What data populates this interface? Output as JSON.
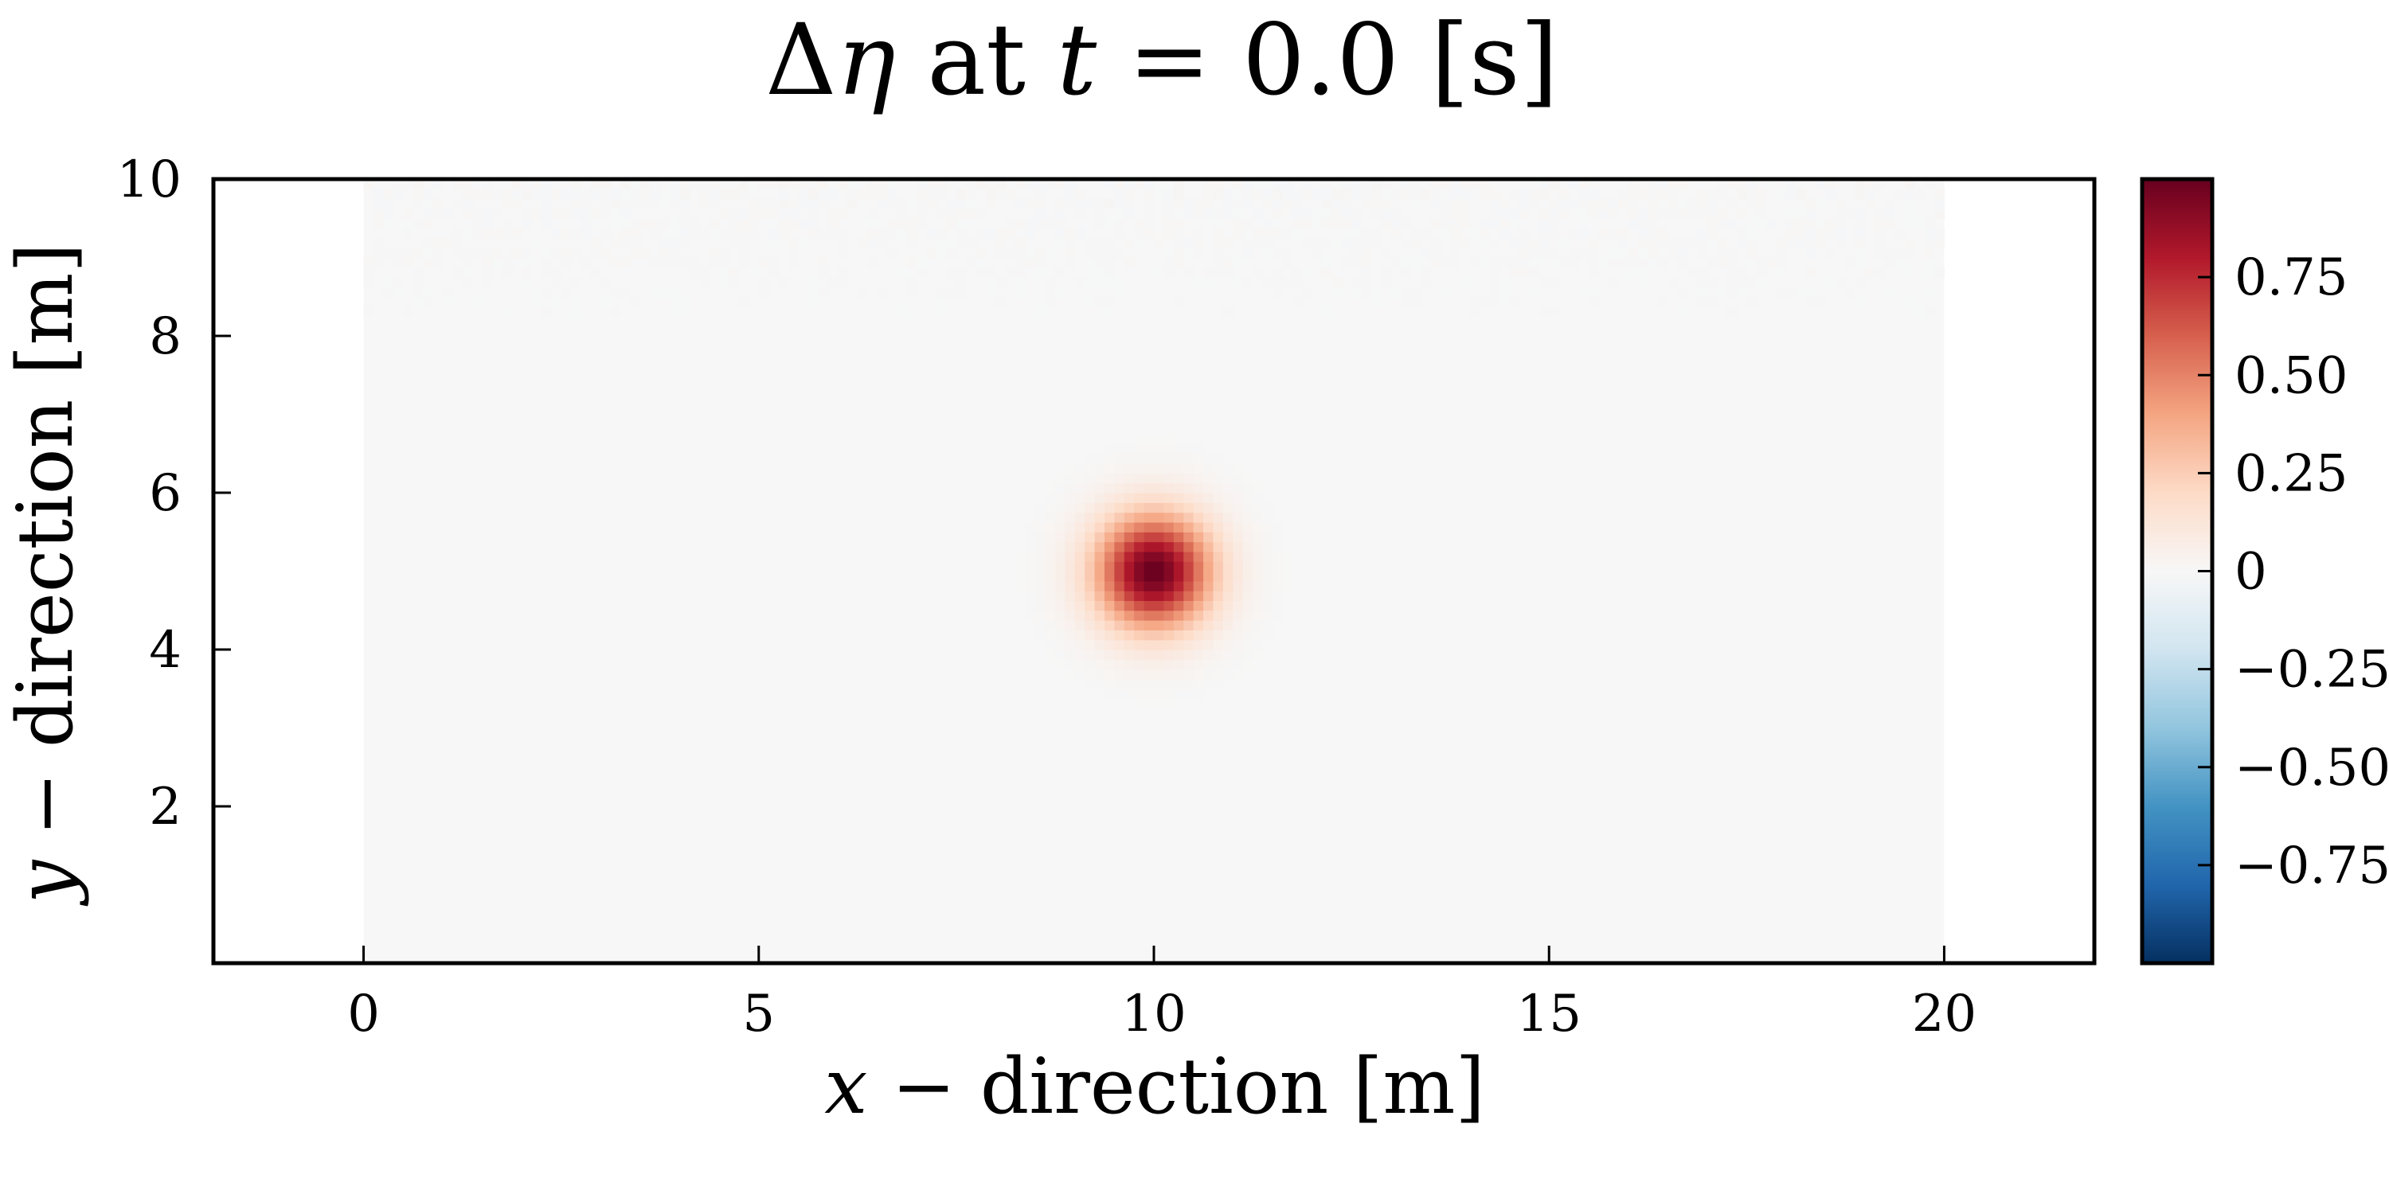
{
  "chart_data": {
    "type": "heatmap",
    "title": {
      "delta": "Δ",
      "eta": "η",
      "mid": " at ",
      "t": "t",
      "rest": " = 0.0 [s]"
    },
    "xlabel": {
      "var": "x",
      "rest": " − direction [m]"
    },
    "ylabel": {
      "var": "y",
      "rest": " − direction [m]"
    },
    "xlim": [
      -1.9,
      21.9
    ],
    "ylim": [
      0,
      10
    ],
    "data_extent": {
      "x": [
        0,
        20
      ],
      "y": [
        0,
        10
      ]
    },
    "x_ticks": [
      0,
      5,
      10,
      15,
      20
    ],
    "x_tick_labels": [
      "0",
      "5",
      "10",
      "15",
      "20"
    ],
    "y_ticks": [
      2,
      4,
      6,
      8,
      10
    ],
    "y_tick_labels": [
      "2",
      "4",
      "6",
      "8",
      "10"
    ],
    "grid": false,
    "field": {
      "description_kind": "gaussian_bump",
      "center": [
        10,
        5
      ],
      "amplitude": 1.0,
      "sigma": 0.5,
      "background": 0.0,
      "noise_band_y": [
        8.0,
        10.0
      ],
      "noise_amplitude": 0.01
    },
    "colorbar": {
      "colormap": "RdBu_r",
      "range": [
        -1.0,
        1.0
      ],
      "ticks": [
        0.75,
        0.5,
        0.25,
        0,
        -0.25,
        -0.5,
        -0.75
      ],
      "tick_labels": [
        "0.75",
        "0.50",
        "0.25",
        "0",
        "−0.25",
        "−0.50",
        "−0.75"
      ],
      "colors": [
        "#053061",
        "#2166ac",
        "#4393c3",
        "#92c5de",
        "#d1e5f0",
        "#f7f7f7",
        "#fddbc7",
        "#f4a582",
        "#d6604d",
        "#b2182b",
        "#67001f"
      ]
    }
  }
}
